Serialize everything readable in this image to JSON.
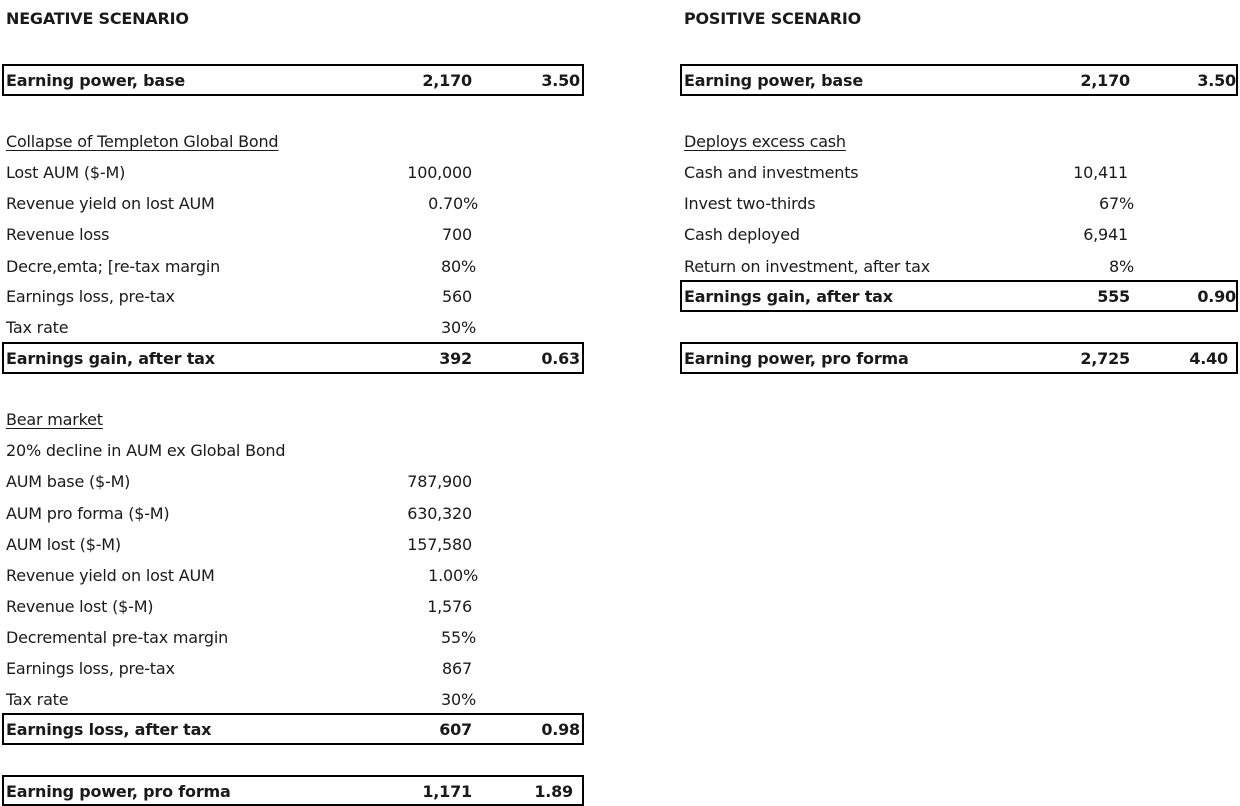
{
  "negative": {
    "heading": "NEGATIVE SCENARIO",
    "base": {
      "label": "Earning power, base",
      "value": "2,170",
      "per_share": "3.50"
    },
    "templeton": {
      "title": "Collapse of Templeton Global Bond",
      "rows": [
        {
          "label": "Lost AUM ($-M)",
          "value": "100,000"
        },
        {
          "label": "Revenue yield on lost AUM",
          "value": "0.70%"
        },
        {
          "label": "Revenue loss",
          "value": "700"
        },
        {
          "label": "Decre,emta; [re-tax margin",
          "value": "80%"
        },
        {
          "label": "Earnings loss, pre-tax",
          "value": "560"
        },
        {
          "label": "Tax rate",
          "value": "30%"
        }
      ],
      "total": {
        "label": "Earnings gain, after tax",
        "value": "392",
        "per_share": "0.63"
      }
    },
    "bear": {
      "title": "Bear market",
      "subtitle": "20% decline in AUM ex Global Bond",
      "rows": [
        {
          "label": "AUM base ($-M)",
          "value": "787,900"
        },
        {
          "label": "AUM pro forma ($-M)",
          "value": "630,320"
        },
        {
          "label": "AUM lost ($-M)",
          "value": "157,580"
        },
        {
          "label": "Revenue yield on lost AUM",
          "value": "1.00%"
        },
        {
          "label": "Revenue lost ($-M)",
          "value": "1,576"
        },
        {
          "label": "Decremental pre-tax margin",
          "value": "55%"
        },
        {
          "label": "Earnings loss, pre-tax",
          "value": "867"
        },
        {
          "label": "Tax rate",
          "value": "30%"
        }
      ],
      "total": {
        "label": "Earnings loss, after tax",
        "value": "607",
        "per_share": "0.98"
      }
    },
    "proforma": {
      "label": "Earning power, pro forma",
      "value": "1,171",
      "per_share": "1.89"
    }
  },
  "positive": {
    "heading": "POSITIVE SCENARIO",
    "base": {
      "label": "Earning power, base",
      "value": "2,170",
      "per_share": "3.50"
    },
    "deploy": {
      "title": "Deploys excess cash",
      "rows": [
        {
          "label": "Cash and investments",
          "value": "10,411"
        },
        {
          "label": "Invest two-thirds",
          "value": "67%"
        },
        {
          "label": "Cash deployed",
          "value": "6,941"
        },
        {
          "label": "Return on investment, after tax",
          "value": "8%"
        }
      ],
      "total": {
        "label": "Earnings gain, after tax",
        "value": "555",
        "per_share": "0.90"
      }
    },
    "proforma": {
      "label": "Earning power, pro forma",
      "value": "2,725",
      "per_share": "4.40"
    }
  }
}
